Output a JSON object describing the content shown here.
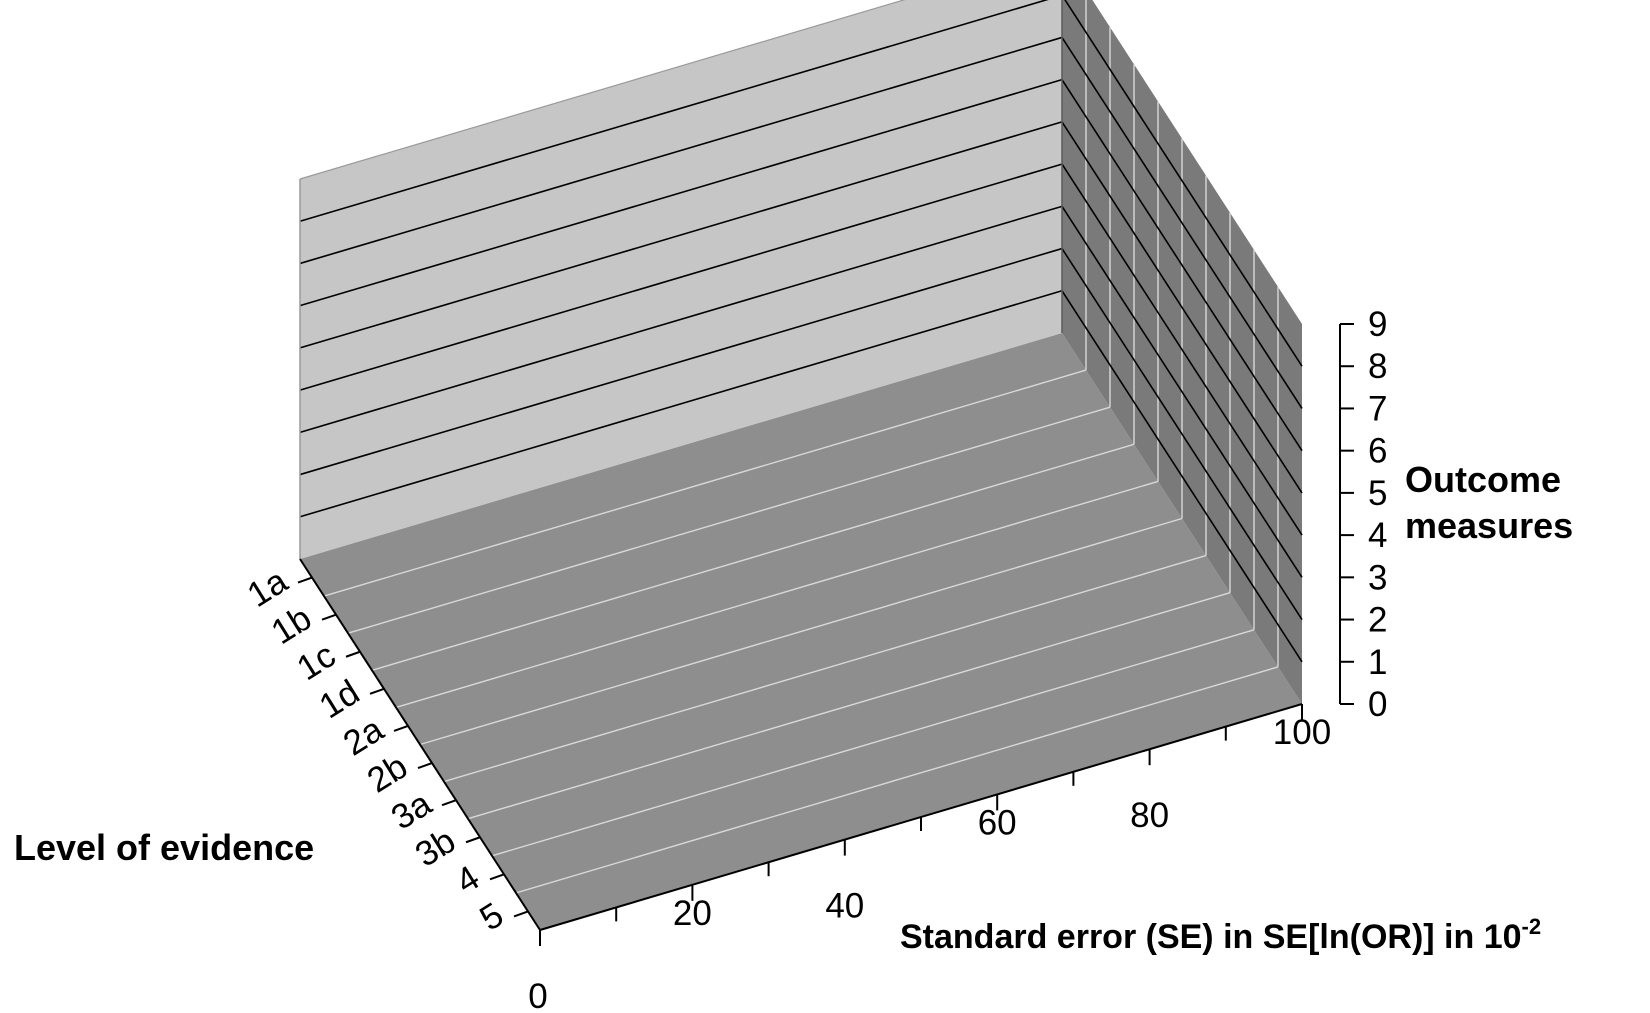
{
  "chart_data": {
    "type": "surface",
    "view": "3d",
    "x_axis": {
      "label": "Standard error (SE) in SE[ln(OR)] in 10",
      "label_superscript": "-2",
      "range": [
        0,
        100
      ],
      "ticks": [
        "0",
        "20",
        "40",
        "60",
        "80",
        "100"
      ]
    },
    "y_axis": {
      "label": "Level of evidence",
      "categories": [
        "1a",
        "1b",
        "1c",
        "1d",
        "2a",
        "2b",
        "3a",
        "3b",
        "4",
        "5"
      ]
    },
    "z_axis": {
      "label_line1": "Outcome",
      "label_line2": "measures",
      "range": [
        0,
        9
      ],
      "ticks": [
        "0",
        "1",
        "2",
        "3",
        "4",
        "5",
        "6",
        "7",
        "8",
        "9"
      ]
    },
    "series": [],
    "grid": true,
    "colors": {
      "floor": "#8e8e8e",
      "back_wall": "#c6c6c6",
      "side_wall": "#7a7a7a",
      "floor_grid": "#d8d8d8",
      "wall_grid": "#000000",
      "text": "#000000"
    }
  }
}
